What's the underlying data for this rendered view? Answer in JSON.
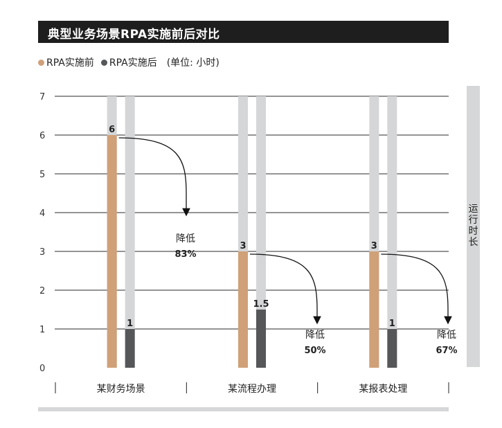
{
  "chart_data": {
    "type": "bar",
    "title": "典型业务场景RPA实施前后对比",
    "unit": "(单位: 小时)",
    "ylabel": "运行时长",
    "ylim": [
      0,
      7
    ],
    "yticks": [
      "0",
      "1",
      "2",
      "3",
      "4",
      "5",
      "6",
      "7"
    ],
    "categories": [
      "某财务场景",
      "某流程办理",
      "某报表处理"
    ],
    "series": [
      {
        "name": "RPA实施前",
        "color": "#d0a078",
        "values": [
          6,
          3,
          3
        ],
        "labels": [
          "6",
          "3",
          "3"
        ]
      },
      {
        "name": "RPA实施后",
        "color": "#555759",
        "values": [
          1,
          1.5,
          1
        ],
        "labels": [
          "1",
          "1.5",
          "1"
        ]
      }
    ],
    "background_bar_color": "#d4d6d8",
    "annotations": [
      {
        "line1": "降低",
        "line2": "83%"
      },
      {
        "line1": "降低",
        "line2": "50%"
      },
      {
        "line1": "降低",
        "line2": "67%"
      }
    ]
  }
}
